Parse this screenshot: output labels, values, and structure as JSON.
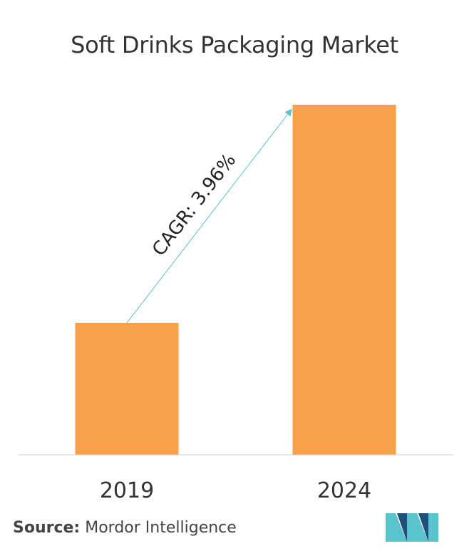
{
  "chart_data": {
    "type": "bar",
    "title": "Soft Drinks Packaging Market",
    "categories": [
      "2019",
      "2024"
    ],
    "values": [
      37.7,
      100
    ],
    "ylim": [
      0,
      100
    ],
    "grid": false,
    "annotation": "CAGR: 3.96%",
    "bar_color": "#F9A148",
    "arrow_color": "#5BC3CE",
    "axis_color": "#CCCCCC"
  },
  "source": {
    "label": "Source:",
    "text": "Mordor Intelligence"
  },
  "logo": {
    "icon": "mordor-intelligence-logo-icon",
    "colors": [
      "#5BC3CE",
      "#1E4F7A"
    ]
  }
}
